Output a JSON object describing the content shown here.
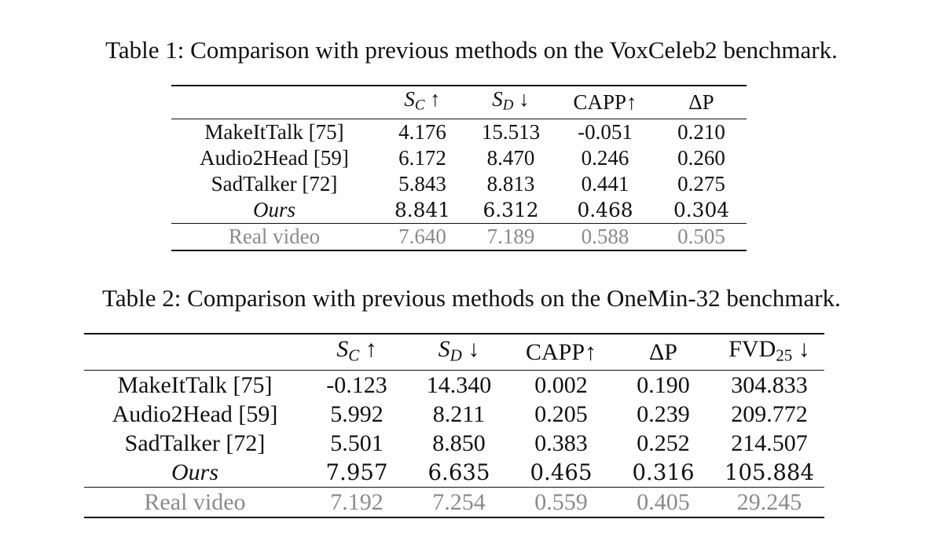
{
  "table1": {
    "caption": "Table 1: Comparison with previous methods on the VoxCeleb2 benchmark.",
    "headers": {
      "sc_base": "S",
      "sc_sub": "C",
      "sc_arrow": "↑",
      "sd_base": "S",
      "sd_sub": "D",
      "sd_arrow": "↓",
      "capp": "CAPP↑",
      "dp": "ΔP"
    },
    "rows": [
      {
        "method": "MakeItTalk [75]",
        "sc": "4.176",
        "sd": "15.513",
        "capp": "-0.051",
        "dp": "0.210"
      },
      {
        "method": "Audio2Head [59]",
        "sc": "6.172",
        "sd": "8.470",
        "capp": "0.246",
        "dp": "0.260"
      },
      {
        "method": "SadTalker [72]",
        "sc": "5.843",
        "sd": "8.813",
        "capp": "0.441",
        "dp": "0.275"
      },
      {
        "method": "Ours",
        "sc": "8.841",
        "sd": "6.312",
        "capp": "0.468",
        "dp": "0.304"
      },
      {
        "method": "Real video",
        "sc": "7.640",
        "sd": "7.189",
        "capp": "0.588",
        "dp": "0.505"
      }
    ]
  },
  "table2": {
    "caption": "Table 2: Comparison with previous methods on the OneMin-32 benchmark.",
    "headers": {
      "sc_base": "S",
      "sc_sub": "C",
      "sc_arrow": "↑",
      "sd_base": "S",
      "sd_sub": "D",
      "sd_arrow": "↓",
      "capp": "CAPP↑",
      "dp": "ΔP",
      "fvd_base": "FVD",
      "fvd_sub": "25",
      "fvd_arrow": "↓"
    },
    "rows": [
      {
        "method": "MakeItTalk [75]",
        "sc": "-0.123",
        "sd": "14.340",
        "capp": "0.002",
        "dp": "0.190",
        "fvd": "304.833"
      },
      {
        "method": "Audio2Head [59]",
        "sc": "5.992",
        "sd": "8.211",
        "capp": "0.205",
        "dp": "0.239",
        "fvd": "209.772"
      },
      {
        "method": "SadTalker [72]",
        "sc": "5.501",
        "sd": "8.850",
        "capp": "0.383",
        "dp": "0.252",
        "fvd": "214.507"
      },
      {
        "method": "Ours",
        "sc": "7.957",
        "sd": "6.635",
        "capp": "0.465",
        "dp": "0.316",
        "fvd": "105.884"
      },
      {
        "method": "Real video",
        "sc": "7.192",
        "sd": "7.254",
        "capp": "0.559",
        "dp": "0.405",
        "fvd": "29.245"
      }
    ]
  }
}
